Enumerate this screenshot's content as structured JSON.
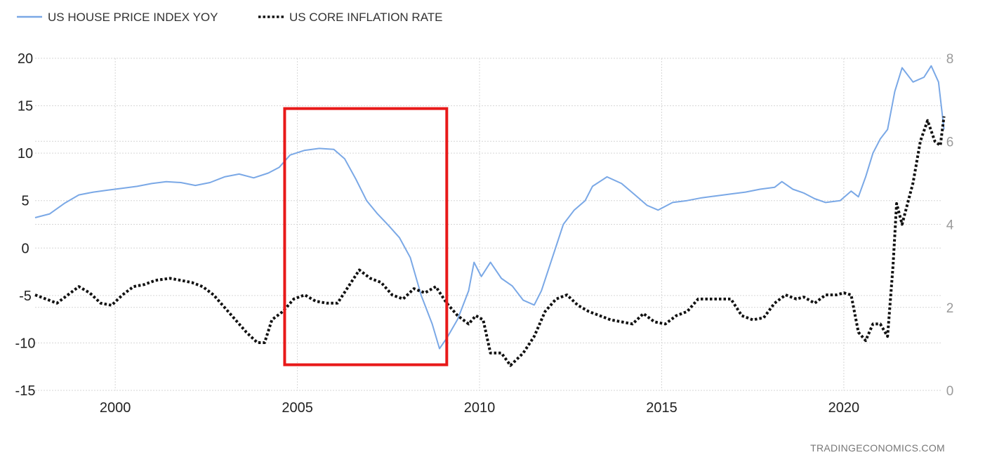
{
  "chart_data": {
    "type": "line",
    "title": "",
    "xlabel": "",
    "ylabel_left": "",
    "ylabel_right": "",
    "legend_position": "top-left",
    "grid": true,
    "xlim": [
      1997.8,
      2022.7
    ],
    "ylim_left": [
      -15,
      20
    ],
    "ylim_right": [
      0,
      8
    ],
    "x_ticks": [
      2000,
      2005,
      2010,
      2015,
      2020
    ],
    "y_ticks_left": [
      -15,
      -10,
      -5,
      0,
      5,
      10,
      15,
      20
    ],
    "y_ticks_right": [
      0,
      2,
      4,
      6,
      8
    ],
    "source": "TRADINGECONOMICS.COM",
    "series": [
      {
        "name": "US HOUSE PRICE INDEX YOY",
        "axis": "left",
        "color": "#7aa8e6",
        "style": "solid",
        "points": [
          [
            1997.8,
            3.2
          ],
          [
            1998.2,
            3.6
          ],
          [
            1998.6,
            4.7
          ],
          [
            1999.0,
            5.6
          ],
          [
            1999.4,
            5.9
          ],
          [
            1999.8,
            6.1
          ],
          [
            2000.2,
            6.3
          ],
          [
            2000.6,
            6.5
          ],
          [
            2001.0,
            6.8
          ],
          [
            2001.4,
            7.0
          ],
          [
            2001.8,
            6.9
          ],
          [
            2002.2,
            6.6
          ],
          [
            2002.6,
            6.9
          ],
          [
            2003.0,
            7.5
          ],
          [
            2003.4,
            7.8
          ],
          [
            2003.8,
            7.4
          ],
          [
            2004.2,
            7.9
          ],
          [
            2004.5,
            8.5
          ],
          [
            2004.8,
            9.8
          ],
          [
            2005.2,
            10.3
          ],
          [
            2005.6,
            10.5
          ],
          [
            2006.0,
            10.4
          ],
          [
            2006.3,
            9.4
          ],
          [
            2006.6,
            7.3
          ],
          [
            2006.9,
            5.0
          ],
          [
            2007.2,
            3.6
          ],
          [
            2007.5,
            2.4
          ],
          [
            2007.8,
            1.1
          ],
          [
            2008.1,
            -1.0
          ],
          [
            2008.4,
            -5.0
          ],
          [
            2008.7,
            -8.0
          ],
          [
            2008.9,
            -10.6
          ],
          [
            2009.1,
            -9.5
          ],
          [
            2009.4,
            -7.5
          ],
          [
            2009.7,
            -4.5
          ],
          [
            2009.85,
            -1.5
          ],
          [
            2010.05,
            -3.0
          ],
          [
            2010.3,
            -1.5
          ],
          [
            2010.6,
            -3.2
          ],
          [
            2010.9,
            -4.0
          ],
          [
            2011.2,
            -5.5
          ],
          [
            2011.5,
            -6.0
          ],
          [
            2011.7,
            -4.5
          ],
          [
            2012.0,
            -1.0
          ],
          [
            2012.3,
            2.5
          ],
          [
            2012.6,
            4.0
          ],
          [
            2012.9,
            5.0
          ],
          [
            2013.1,
            6.5
          ],
          [
            2013.5,
            7.5
          ],
          [
            2013.9,
            6.8
          ],
          [
            2014.3,
            5.5
          ],
          [
            2014.6,
            4.5
          ],
          [
            2014.9,
            4.0
          ],
          [
            2015.3,
            4.8
          ],
          [
            2015.7,
            5.0
          ],
          [
            2016.1,
            5.3
          ],
          [
            2016.5,
            5.5
          ],
          [
            2016.9,
            5.7
          ],
          [
            2017.3,
            5.9
          ],
          [
            2017.7,
            6.2
          ],
          [
            2018.1,
            6.4
          ],
          [
            2018.3,
            7.0
          ],
          [
            2018.6,
            6.2
          ],
          [
            2018.9,
            5.8
          ],
          [
            2019.2,
            5.2
          ],
          [
            2019.5,
            4.8
          ],
          [
            2019.9,
            5.0
          ],
          [
            2020.2,
            6.0
          ],
          [
            2020.4,
            5.4
          ],
          [
            2020.6,
            7.5
          ],
          [
            2020.8,
            10.0
          ],
          [
            2021.0,
            11.5
          ],
          [
            2021.2,
            12.5
          ],
          [
            2021.4,
            16.5
          ],
          [
            2021.6,
            19.0
          ],
          [
            2021.9,
            17.5
          ],
          [
            2022.2,
            18.0
          ],
          [
            2022.4,
            19.2
          ],
          [
            2022.6,
            17.5
          ],
          [
            2022.75,
            12.5
          ]
        ]
      },
      {
        "name": "US CORE INFLATION RATE",
        "axis": "right",
        "color": "#111111",
        "style": "dotted",
        "points": [
          [
            1997.8,
            2.3
          ],
          [
            1998.1,
            2.2
          ],
          [
            1998.4,
            2.1
          ],
          [
            1998.7,
            2.3
          ],
          [
            1999.0,
            2.5
          ],
          [
            1999.3,
            2.35
          ],
          [
            1999.6,
            2.1
          ],
          [
            1999.9,
            2.05
          ],
          [
            2000.2,
            2.3
          ],
          [
            2000.5,
            2.5
          ],
          [
            2000.8,
            2.55
          ],
          [
            2001.1,
            2.65
          ],
          [
            2001.5,
            2.7
          ],
          [
            2001.8,
            2.65
          ],
          [
            2002.1,
            2.6
          ],
          [
            2002.4,
            2.5
          ],
          [
            2002.7,
            2.3
          ],
          [
            2003.0,
            2.0
          ],
          [
            2003.3,
            1.7
          ],
          [
            2003.6,
            1.4
          ],
          [
            2003.9,
            1.15
          ],
          [
            2004.1,
            1.15
          ],
          [
            2004.3,
            1.7
          ],
          [
            2004.6,
            1.9
          ],
          [
            2004.9,
            2.2
          ],
          [
            2005.2,
            2.3
          ],
          [
            2005.5,
            2.15
          ],
          [
            2005.8,
            2.1
          ],
          [
            2006.1,
            2.1
          ],
          [
            2006.4,
            2.5
          ],
          [
            2006.7,
            2.9
          ],
          [
            2007.0,
            2.7
          ],
          [
            2007.3,
            2.6
          ],
          [
            2007.6,
            2.3
          ],
          [
            2007.9,
            2.2
          ],
          [
            2008.2,
            2.45
          ],
          [
            2008.5,
            2.35
          ],
          [
            2008.8,
            2.5
          ],
          [
            2009.1,
            2.1
          ],
          [
            2009.4,
            1.8
          ],
          [
            2009.7,
            1.6
          ],
          [
            2009.9,
            1.8
          ],
          [
            2010.1,
            1.7
          ],
          [
            2010.3,
            0.9
          ],
          [
            2010.6,
            0.9
          ],
          [
            2010.85,
            0.6
          ],
          [
            2011.2,
            0.9
          ],
          [
            2011.5,
            1.3
          ],
          [
            2011.8,
            1.9
          ],
          [
            2012.1,
            2.2
          ],
          [
            2012.4,
            2.3
          ],
          [
            2012.7,
            2.05
          ],
          [
            2013.0,
            1.9
          ],
          [
            2013.3,
            1.8
          ],
          [
            2013.6,
            1.7
          ],
          [
            2013.9,
            1.65
          ],
          [
            2014.2,
            1.6
          ],
          [
            2014.5,
            1.85
          ],
          [
            2014.8,
            1.65
          ],
          [
            2015.1,
            1.6
          ],
          [
            2015.4,
            1.8
          ],
          [
            2015.7,
            1.9
          ],
          [
            2016.0,
            2.2
          ],
          [
            2016.3,
            2.2
          ],
          [
            2016.6,
            2.2
          ],
          [
            2016.9,
            2.2
          ],
          [
            2017.2,
            1.8
          ],
          [
            2017.5,
            1.7
          ],
          [
            2017.8,
            1.75
          ],
          [
            2018.1,
            2.1
          ],
          [
            2018.4,
            2.3
          ],
          [
            2018.7,
            2.2
          ],
          [
            2018.9,
            2.25
          ],
          [
            2019.2,
            2.1
          ],
          [
            2019.5,
            2.3
          ],
          [
            2019.8,
            2.3
          ],
          [
            2020.0,
            2.35
          ],
          [
            2020.2,
            2.3
          ],
          [
            2020.4,
            1.4
          ],
          [
            2020.6,
            1.2
          ],
          [
            2020.8,
            1.6
          ],
          [
            2021.0,
            1.6
          ],
          [
            2021.2,
            1.3
          ],
          [
            2021.35,
            3.0
          ],
          [
            2021.45,
            4.5
          ],
          [
            2021.6,
            4.0
          ],
          [
            2021.9,
            5.0
          ],
          [
            2022.1,
            6.0
          ],
          [
            2022.3,
            6.5
          ],
          [
            2022.5,
            6.0
          ],
          [
            2022.65,
            5.9
          ],
          [
            2022.75,
            6.6
          ]
        ]
      }
    ],
    "annotation": {
      "type": "rectangle",
      "color": "#e81919",
      "x_range": [
        2004.65,
        2009.1
      ],
      "y_range_left": [
        -12.3,
        14.7
      ]
    }
  }
}
